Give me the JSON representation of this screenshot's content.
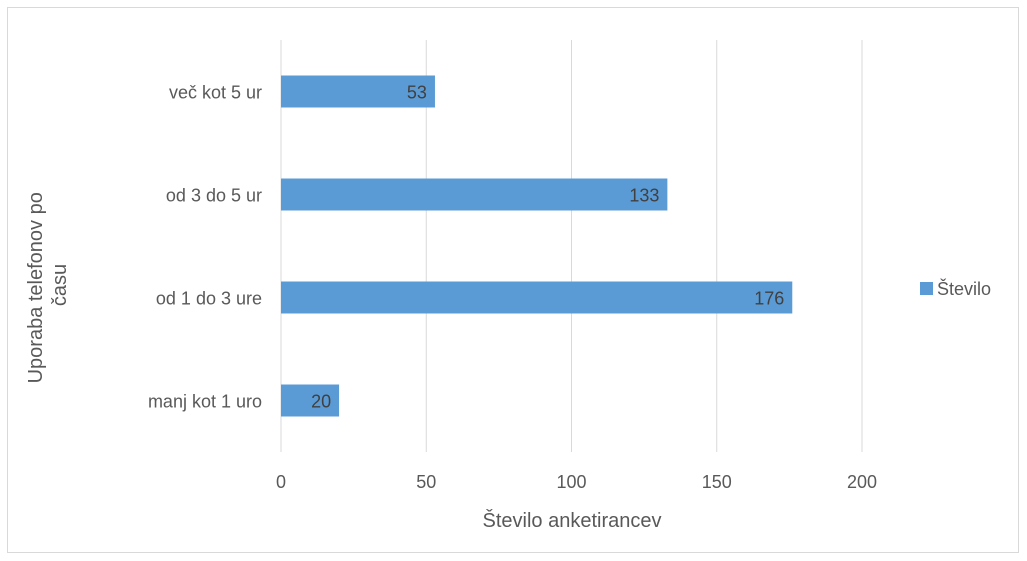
{
  "chart_data": {
    "type": "bar",
    "orientation": "horizontal",
    "categories": [
      "manj kot 1 uro",
      "od 1 do 3 ure",
      "od 3 do 5 ur",
      "več kot 5 ur"
    ],
    "series": [
      {
        "name": "Število",
        "values": [
          20,
          176,
          133,
          53
        ],
        "color": "#5b9bd5"
      }
    ],
    "xlabel": "Število anketirancev",
    "ylabel": "Uporaba telefonov po času",
    "ylabel_lines": [
      "Uporaba telefonov po",
      "času"
    ],
    "xlim": [
      0,
      200
    ],
    "xticks": [
      0,
      50,
      100,
      150,
      200
    ],
    "grid": true,
    "data_labels": true,
    "legend": {
      "placement": "right",
      "entries": [
        "Število"
      ]
    }
  }
}
